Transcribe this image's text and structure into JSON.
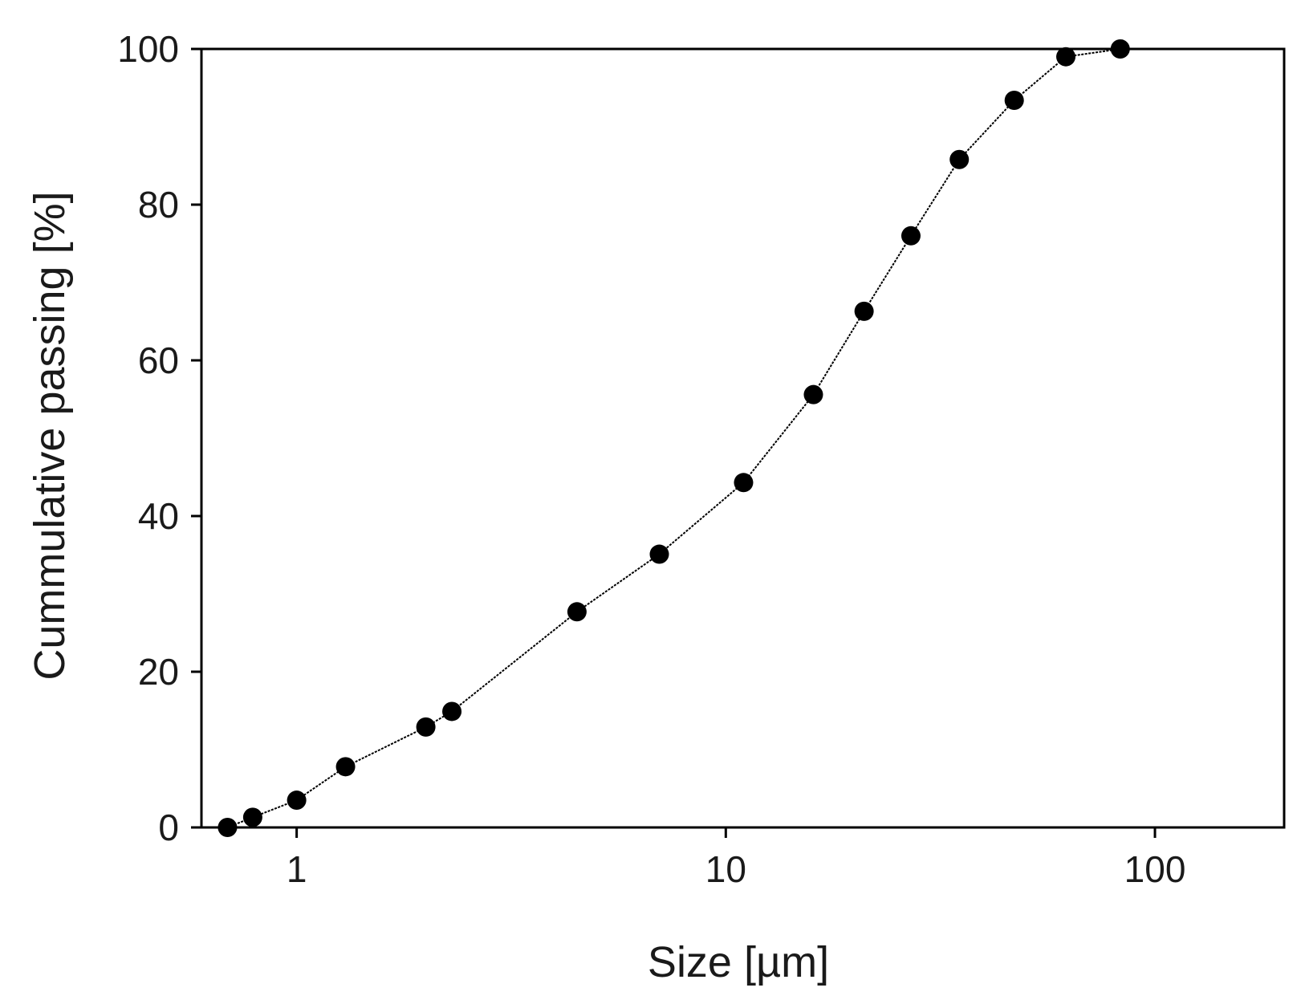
{
  "chart_data": {
    "type": "scatter",
    "title": "",
    "xlabel": "Size [µm]",
    "ylabel": "Cummulative passing [%]",
    "x_scale": "log",
    "xlim": [
      0.6,
      200
    ],
    "ylim": [
      0,
      100
    ],
    "x_ticks": [
      1,
      10,
      100
    ],
    "x_tick_labels": [
      "1",
      "10",
      "100"
    ],
    "y_ticks": [
      0,
      20,
      40,
      60,
      80,
      100
    ],
    "y_tick_labels": [
      "0",
      "20",
      "40",
      "60",
      "80",
      "100"
    ],
    "grid": false,
    "legend": false,
    "colors": {
      "marker": "#000000",
      "line": "#000000",
      "text": "#1a1a1a",
      "axis": "#000000"
    },
    "series": [
      {
        "x": [
          0.69,
          0.79,
          1.0,
          1.3,
          2.0,
          2.3,
          4.5,
          7.0,
          11.0,
          16.0,
          21.0,
          27.0,
          35.0,
          47.0,
          62.0,
          83.0
        ],
        "y": [
          0,
          1.3,
          3.5,
          7.8,
          12.9,
          14.9,
          27.7,
          35.1,
          44.3,
          55.6,
          66.3,
          76.0,
          85.8,
          93.4,
          99.0,
          100
        ]
      }
    ]
  }
}
